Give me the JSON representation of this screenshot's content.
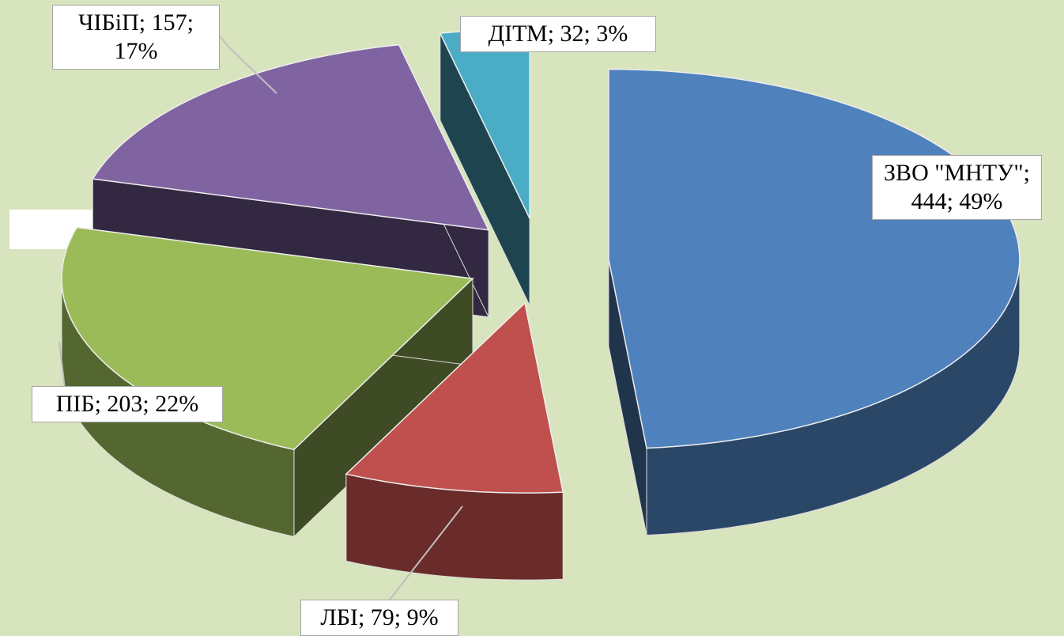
{
  "chart_data": {
    "type": "pie3d",
    "categories": [
      "ЗВО \"МНТУ\"",
      "ЛБІ",
      "ПІБ",
      "ЧІБіП",
      "ДІТМ"
    ],
    "values": [
      444,
      79,
      203,
      157,
      32
    ],
    "value_labels": [
      "ЗВО \"МНТУ\"; 444; 49%",
      "ЛБІ; 79; 9%",
      "ПІБ; 203; 22%",
      "ЧІБіП; 157; 17%",
      "ДІТМ; 32; 3%"
    ],
    "colors": [
      "#4f81bd",
      "#c0504d",
      "#9bbb59",
      "#8064a2",
      "#4bacc6"
    ]
  }
}
